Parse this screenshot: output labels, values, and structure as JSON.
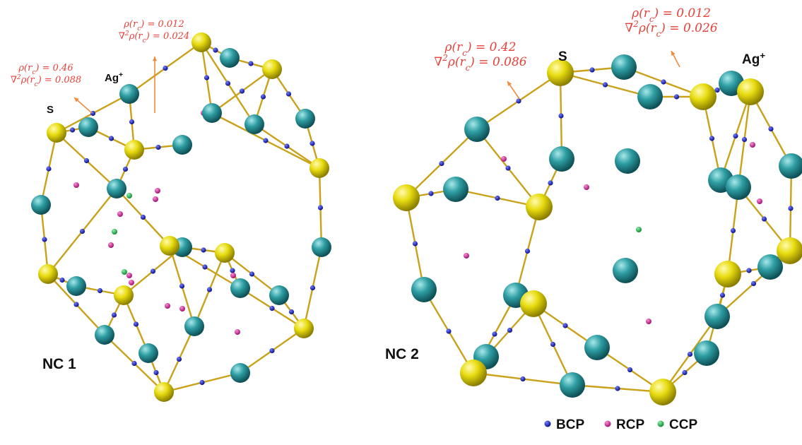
{
  "panels": [
    {
      "label": "NC 1",
      "s_label": "S",
      "ag_label": [
        {
          "t": "Ag"
        },
        {
          "sup": "+"
        }
      ],
      "annotations": [
        {
          "lines": [
            [
              {
                "t": "ρ(r"
              },
              {
                "sub": "c"
              },
              {
                "t": ") = 0.46"
              }
            ],
            [
              {
                "t": "∇"
              },
              {
                "sup": "2"
              },
              {
                "t": "ρ(r"
              },
              {
                "sub": "c"
              },
              {
                "t": ") = 0.088"
              }
            ]
          ]
        },
        {
          "lines": [
            [
              {
                "t": "ρ(r"
              },
              {
                "sub": "c"
              },
              {
                "t": ") = 0.012"
              }
            ],
            [
              {
                "t": "∇"
              },
              {
                "sup": "2"
              },
              {
                "t": "ρ(r"
              },
              {
                "sub": "c"
              },
              {
                "t": ") = 0.024"
              }
            ]
          ]
        }
      ]
    },
    {
      "label": "NC 2",
      "s_label": "S",
      "ag_label": [
        {
          "t": "Ag"
        },
        {
          "sup": "+"
        }
      ],
      "annotations": [
        {
          "lines": [
            [
              {
                "t": "ρ(r"
              },
              {
                "sub": "c"
              },
              {
                "t": ") = 0.42"
              }
            ],
            [
              {
                "t": "∇"
              },
              {
                "sup": "2"
              },
              {
                "t": "ρ(r"
              },
              {
                "sub": "c"
              },
              {
                "t": ") = 0.086"
              }
            ]
          ]
        },
        {
          "lines": [
            [
              {
                "t": "ρ(r"
              },
              {
                "sub": "c"
              },
              {
                "t": ") = 0.012"
              }
            ],
            [
              {
                "t": "∇"
              },
              {
                "sup": "2"
              },
              {
                "t": "ρ(r"
              },
              {
                "sub": "c"
              },
              {
                "t": ") = 0.026"
              }
            ]
          ]
        }
      ]
    }
  ],
  "legend": [
    "BCP",
    "RCP",
    "CCP"
  ]
}
